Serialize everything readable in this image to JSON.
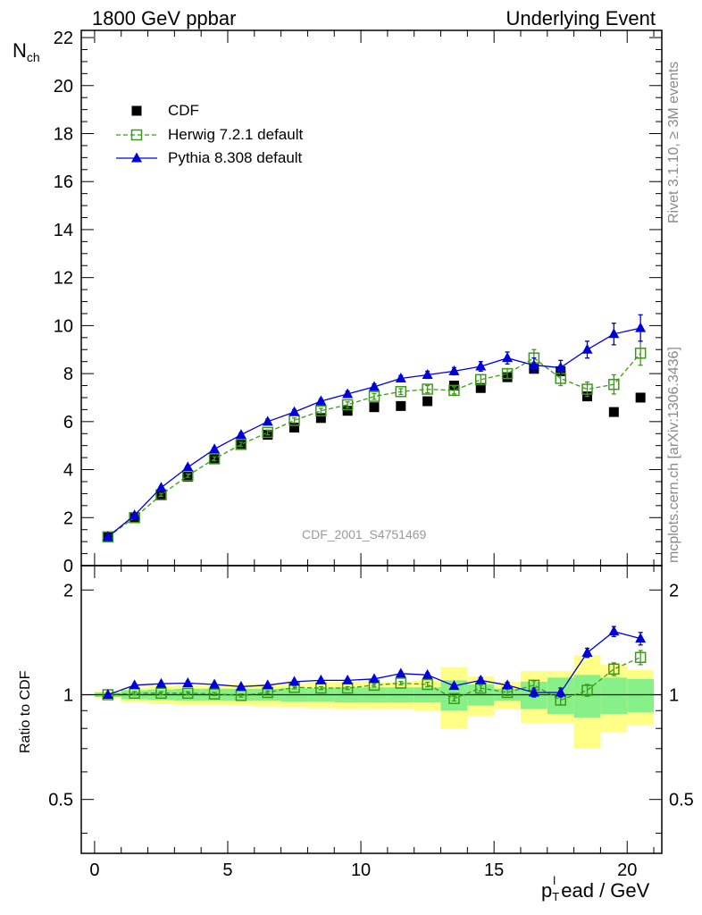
{
  "header": {
    "left": "1800 GeV ppbar",
    "right": "Underlying Event"
  },
  "side_labels": {
    "rivet": "Rivet 3.1.10, ≥ 3M events",
    "mcplots": "mcplots.cern.ch [arXiv:1306.3436]"
  },
  "watermark": "CDF_2001_S4751469",
  "colors": {
    "data": "#000000",
    "herwig": "#3c9a1a",
    "pythia": "#0000d8",
    "band_inner": "#88f088",
    "band_outer": "#ffff88"
  },
  "chart_data": [
    {
      "type": "scatter",
      "title": "",
      "xlabel": "p_T^lead / GeV",
      "ylabel": "N_ch",
      "xlim": [
        -0.5,
        21.3
      ],
      "ylim": [
        0,
        22.3
      ],
      "yticks": [
        0,
        2,
        4,
        6,
        8,
        10,
        12,
        14,
        16,
        18,
        20,
        22
      ],
      "x": [
        0.5,
        1.5,
        2.5,
        3.5,
        4.5,
        5.5,
        6.5,
        7.5,
        8.5,
        9.5,
        10.5,
        11.5,
        12.5,
        13.5,
        14.5,
        15.5,
        16.5,
        17.5,
        18.5,
        19.5,
        20.5
      ],
      "legend": [
        "CDF",
        "Herwig 7.2.1 default",
        "Pythia 8.308 default"
      ],
      "series": [
        {
          "name": "CDF",
          "marker": "square",
          "values": [
            1.2,
            2.0,
            2.95,
            3.7,
            4.45,
            5.05,
            5.45,
            5.75,
            6.15,
            6.45,
            6.6,
            6.65,
            6.85,
            7.5,
            7.4,
            7.85,
            8.2,
            8.1,
            7.05,
            6.4,
            7.0
          ]
        },
        {
          "name": "Herwig 7.2.1 default",
          "marker": "open-square",
          "dashed": true,
          "values": [
            1.2,
            2.0,
            2.95,
            3.75,
            4.45,
            5.05,
            5.55,
            6.05,
            6.45,
            6.7,
            7.05,
            7.25,
            7.35,
            7.3,
            7.75,
            8.0,
            8.65,
            7.8,
            7.35,
            7.55,
            8.85
          ],
          "errors": [
            0.05,
            0.05,
            0.06,
            0.07,
            0.08,
            0.09,
            0.1,
            0.1,
            0.1,
            0.12,
            0.12,
            0.12,
            0.15,
            0.15,
            0.2,
            0.2,
            0.35,
            0.3,
            0.3,
            0.4,
            0.5
          ]
        },
        {
          "name": "Pythia 8.308 default",
          "marker": "filled-triangle",
          "values": [
            1.2,
            2.1,
            3.25,
            4.1,
            4.85,
            5.45,
            6.0,
            6.4,
            6.85,
            7.15,
            7.45,
            7.8,
            7.95,
            8.1,
            8.3,
            8.65,
            8.35,
            8.25,
            9.0,
            9.65,
            9.9
          ],
          "errors": [
            0.05,
            0.05,
            0.06,
            0.07,
            0.08,
            0.09,
            0.1,
            0.1,
            0.1,
            0.12,
            0.12,
            0.12,
            0.15,
            0.15,
            0.2,
            0.25,
            0.3,
            0.3,
            0.35,
            0.45,
            0.55
          ]
        }
      ]
    },
    {
      "type": "scatter",
      "xlabel": "p_T^lead / GeV",
      "ylabel": "Ratio to CDF",
      "xlim": [
        -0.5,
        21.3
      ],
      "ylim": [
        0.35,
        2.35
      ],
      "yticks": [
        0.5,
        1,
        2
      ],
      "x": [
        0.5,
        1.5,
        2.5,
        3.5,
        4.5,
        5.5,
        6.5,
        7.5,
        8.5,
        9.5,
        10.5,
        11.5,
        12.5,
        13.5,
        14.5,
        15.5,
        16.5,
        17.5,
        18.5,
        19.5,
        20.5
      ],
      "bands": {
        "inner_halfwidth": [
          0.015,
          0.03,
          0.035,
          0.04,
          0.04,
          0.04,
          0.04,
          0.045,
          0.045,
          0.05,
          0.05,
          0.05,
          0.05,
          0.1,
          0.07,
          0.04,
          0.09,
          0.12,
          0.14,
          0.12,
          0.11
        ],
        "outer_halfwidth": [
          0.02,
          0.05,
          0.06,
          0.065,
          0.065,
          0.07,
          0.075,
          0.08,
          0.085,
          0.09,
          0.09,
          0.09,
          0.1,
          0.2,
          0.13,
          0.09,
          0.17,
          0.17,
          0.3,
          0.22,
          0.18
        ]
      },
      "series": [
        {
          "name": "Herwig 7.2.1 default",
          "marker": "open-square",
          "dashed": true,
          "values": [
            1.0,
            1.01,
            1.01,
            1.01,
            1.005,
            0.995,
            1.015,
            1.05,
            1.045,
            1.045,
            1.065,
            1.08,
            1.07,
            0.975,
            1.045,
            1.015,
            1.065,
            0.965,
            1.03,
            1.185,
            1.28
          ],
          "errors": [
            0.005,
            0.01,
            0.01,
            0.01,
            0.01,
            0.01,
            0.01,
            0.01,
            0.01,
            0.01,
            0.012,
            0.012,
            0.015,
            0.015,
            0.02,
            0.02,
            0.03,
            0.03,
            0.04,
            0.05,
            0.06
          ]
        },
        {
          "name": "Pythia 8.308 default",
          "marker": "filled-triangle",
          "values": [
            1.0,
            1.065,
            1.075,
            1.08,
            1.07,
            1.055,
            1.065,
            1.09,
            1.1,
            1.1,
            1.11,
            1.15,
            1.14,
            1.06,
            1.1,
            1.065,
            1.015,
            1.015,
            1.32,
            1.52,
            1.45
          ],
          "errors": [
            0.005,
            0.01,
            0.01,
            0.01,
            0.01,
            0.01,
            0.01,
            0.01,
            0.01,
            0.01,
            0.012,
            0.012,
            0.015,
            0.015,
            0.02,
            0.02,
            0.03,
            0.03,
            0.04,
            0.05,
            0.06
          ]
        }
      ]
    }
  ],
  "axes": {
    "xticklabels": [
      "0",
      "5",
      "10",
      "15",
      "20"
    ],
    "upper_ylabel_main": "N",
    "upper_ylabel_sub": "ch",
    "lower_ylabel": "Ratio to CDF",
    "xlabel_p": "p",
    "xlabel_sub": "T",
    "xlabel_sup": "l",
    "xlabel_rest": "ead / GeV"
  }
}
